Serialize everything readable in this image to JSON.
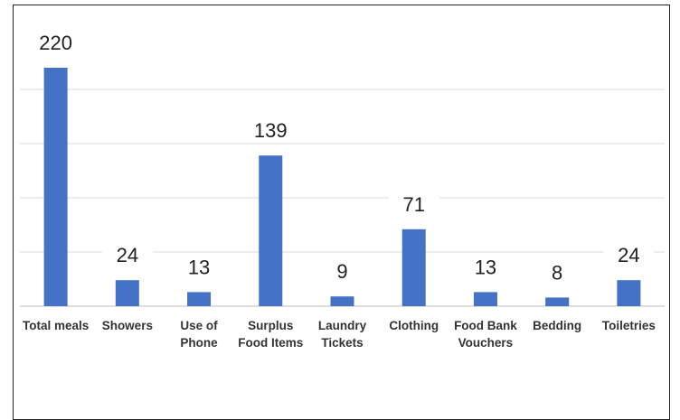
{
  "chart_data": {
    "type": "bar",
    "categories": [
      "Total meals",
      "Showers",
      "Use of Phone",
      "Surplus Food Items",
      "Laundry Tickets",
      "Clothing",
      "Food Bank Vouchers",
      "Bedding",
      "Toiletries"
    ],
    "values": [
      220,
      24,
      13,
      139,
      9,
      71,
      13,
      8,
      24
    ],
    "color": "#4472c4",
    "ylim": [
      0,
      250
    ],
    "yticks": [
      0,
      50,
      100,
      150,
      200,
      250
    ],
    "grid": true
  }
}
